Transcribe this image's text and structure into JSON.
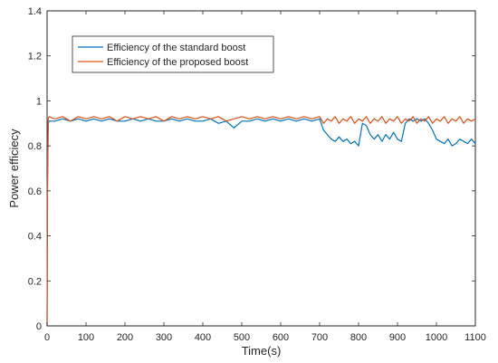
{
  "chart_data": {
    "type": "line",
    "title": "",
    "xlabel": "Time(s)",
    "ylabel": "Power efficiecy",
    "xlim": [
      0,
      1100
    ],
    "ylim": [
      0,
      1.4
    ],
    "xticks": [
      "0",
      "100",
      "200",
      "300",
      "400",
      "500",
      "600",
      "700",
      "800",
      "900",
      "1000",
      "1100"
    ],
    "yticks": [
      "0",
      "0.2",
      "0.4",
      "0.6",
      "0.8",
      "1",
      "1.2",
      "1.4"
    ],
    "grid": false,
    "legend_position": "top-left",
    "series": [
      {
        "name": "Efficiency of the standard boost",
        "color": "#0072BD",
        "x": [
          0,
          1,
          3,
          5,
          20,
          40,
          60,
          80,
          100,
          120,
          140,
          160,
          180,
          200,
          220,
          240,
          260,
          280,
          300,
          320,
          340,
          360,
          380,
          400,
          420,
          440,
          460,
          480,
          500,
          520,
          540,
          560,
          580,
          600,
          620,
          640,
          660,
          680,
          700,
          710,
          720,
          730,
          740,
          750,
          760,
          770,
          780,
          790,
          800,
          810,
          820,
          830,
          840,
          850,
          860,
          870,
          880,
          890,
          900,
          910,
          920,
          930,
          940,
          950,
          960,
          970,
          980,
          990,
          1000,
          1010,
          1020,
          1030,
          1040,
          1050,
          1060,
          1070,
          1080,
          1090,
          1100
        ],
        "y": [
          0.0,
          0.6,
          0.9,
          0.91,
          0.91,
          0.92,
          0.91,
          0.92,
          0.91,
          0.92,
          0.91,
          0.92,
          0.91,
          0.91,
          0.92,
          0.91,
          0.92,
          0.91,
          0.91,
          0.92,
          0.91,
          0.92,
          0.91,
          0.91,
          0.92,
          0.9,
          0.91,
          0.88,
          0.91,
          0.91,
          0.92,
          0.91,
          0.92,
          0.91,
          0.92,
          0.91,
          0.92,
          0.91,
          0.92,
          0.87,
          0.85,
          0.83,
          0.82,
          0.84,
          0.82,
          0.83,
          0.81,
          0.82,
          0.8,
          0.9,
          0.89,
          0.85,
          0.83,
          0.85,
          0.82,
          0.85,
          0.83,
          0.86,
          0.83,
          0.82,
          0.9,
          0.92,
          0.91,
          0.92,
          0.91,
          0.92,
          0.9,
          0.87,
          0.83,
          0.82,
          0.81,
          0.83,
          0.8,
          0.81,
          0.83,
          0.82,
          0.81,
          0.83,
          0.81
        ]
      },
      {
        "name": "Efficiency of the proposed boost",
        "color": "#D95319",
        "x": [
          0,
          1,
          3,
          5,
          20,
          40,
          60,
          80,
          100,
          120,
          140,
          160,
          180,
          200,
          220,
          240,
          260,
          280,
          300,
          320,
          340,
          360,
          380,
          400,
          420,
          440,
          460,
          480,
          500,
          520,
          540,
          560,
          580,
          600,
          620,
          640,
          660,
          680,
          700,
          710,
          720,
          730,
          740,
          750,
          760,
          770,
          780,
          790,
          800,
          810,
          820,
          830,
          840,
          850,
          860,
          870,
          880,
          890,
          900,
          910,
          920,
          930,
          940,
          950,
          960,
          970,
          980,
          990,
          1000,
          1010,
          1020,
          1030,
          1040,
          1050,
          1060,
          1070,
          1080,
          1090,
          1100
        ],
        "y": [
          0.0,
          0.62,
          0.92,
          0.93,
          0.92,
          0.93,
          0.91,
          0.93,
          0.92,
          0.93,
          0.92,
          0.93,
          0.91,
          0.93,
          0.92,
          0.93,
          0.92,
          0.93,
          0.91,
          0.93,
          0.92,
          0.93,
          0.92,
          0.93,
          0.92,
          0.93,
          0.91,
          0.92,
          0.93,
          0.92,
          0.93,
          0.92,
          0.93,
          0.92,
          0.93,
          0.92,
          0.93,
          0.92,
          0.93,
          0.9,
          0.92,
          0.91,
          0.93,
          0.9,
          0.92,
          0.91,
          0.93,
          0.9,
          0.92,
          0.91,
          0.93,
          0.9,
          0.92,
          0.91,
          0.93,
          0.9,
          0.92,
          0.91,
          0.93,
          0.9,
          0.92,
          0.91,
          0.93,
          0.9,
          0.92,
          0.91,
          0.93,
          0.9,
          0.92,
          0.91,
          0.93,
          0.9,
          0.92,
          0.91,
          0.93,
          0.9,
          0.92,
          0.91,
          0.92
        ]
      }
    ]
  }
}
